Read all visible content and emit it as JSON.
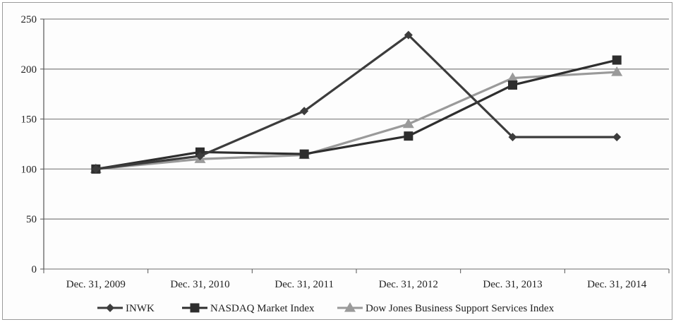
{
  "chart_data": {
    "type": "line",
    "categories": [
      "Dec. 31, 2009",
      "Dec. 31, 2010",
      "Dec. 31, 2011",
      "Dec. 31, 2012",
      "Dec. 31, 2013",
      "Dec. 31, 2014"
    ],
    "series": [
      {
        "name": "INWK",
        "values": [
          100,
          113,
          158,
          234,
          132,
          132
        ],
        "color": "#3c3c3c",
        "marker": "diamond"
      },
      {
        "name": "NASDAQ Market Index",
        "values": [
          100,
          117,
          115,
          133,
          184,
          209
        ],
        "color": "#2e2e2e",
        "marker": "square"
      },
      {
        "name": "Dow Jones Business Support Services Index",
        "values": [
          100,
          110,
          114,
          145,
          191,
          197
        ],
        "color": "#9a9a9a",
        "marker": "triangle"
      }
    ],
    "ylim": [
      0,
      250
    ],
    "yticks": [
      0,
      50,
      100,
      150,
      200,
      250
    ],
    "grid": true,
    "legend_position": "bottom"
  }
}
